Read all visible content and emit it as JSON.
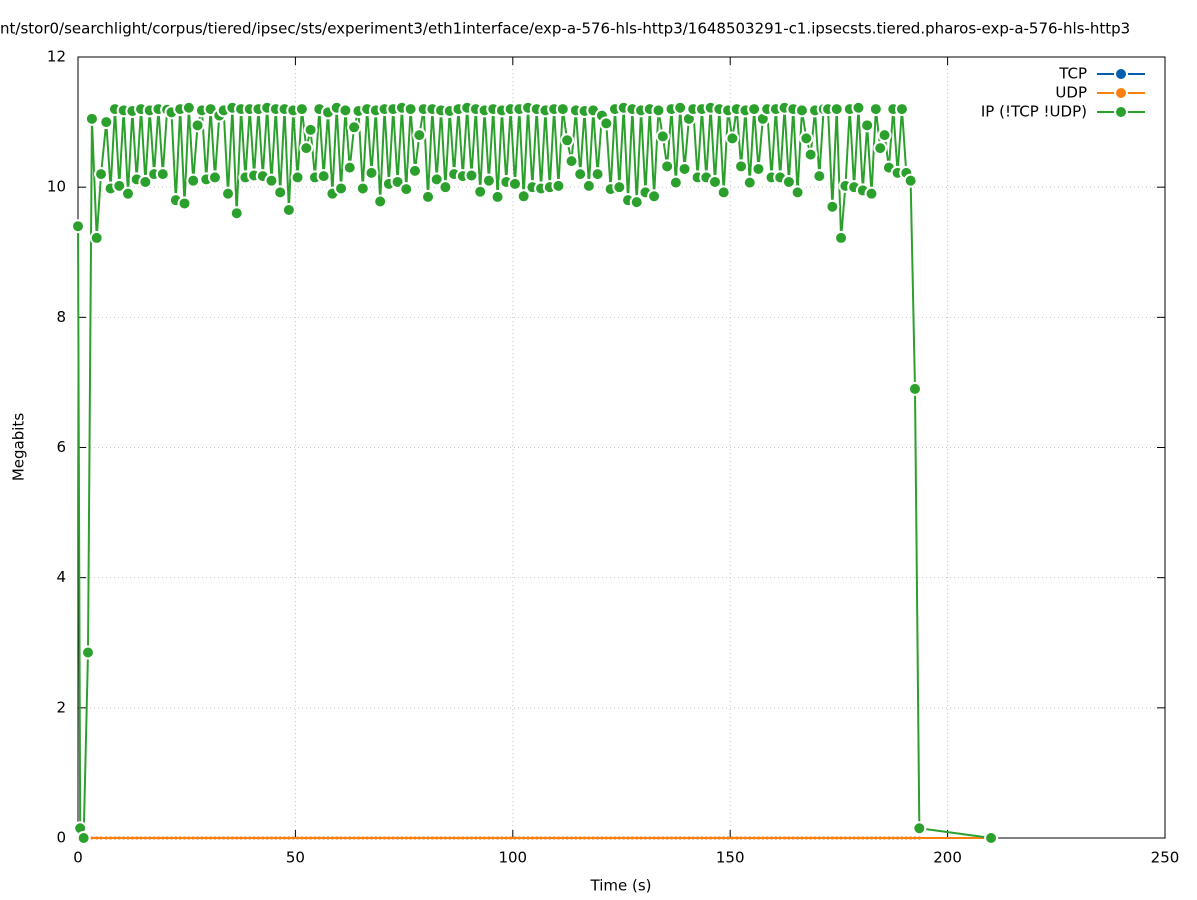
{
  "chart_data": {
    "type": "line",
    "title": "nt/stor0/searchlight/corpus/tiered/ipsec/sts/experiment3/eth1interface/exp-a-576-hls-http3/1648503291-c1.ipsecsts.tiered.pharos-exp-a-576-hls-http3",
    "x_label": "Time (s)",
    "y_label": "Megabits",
    "xlim": [
      0,
      250
    ],
    "xticks": [
      0,
      50,
      100,
      150,
      200,
      250
    ],
    "ylim": [
      0,
      12
    ],
    "yticks": [
      0,
      2,
      4,
      6,
      8,
      10,
      12
    ],
    "grid": true,
    "legend": "top-right",
    "x": [
      0,
      0.5,
      1.3,
      2.3,
      3.2,
      4.3,
      5.3,
      6.5,
      7.5,
      8.5,
      9.5,
      10.5,
      11.5,
      12.5,
      13.5,
      14.5,
      15.5,
      16.5,
      17.5,
      18.5,
      19.5,
      20.5,
      21.5,
      22.5,
      23.5,
      24.5,
      25.5,
      26.5,
      27.5,
      28.5,
      29.5,
      30.5,
      31.5,
      32.5,
      33.5,
      34.5,
      35.5,
      36.5,
      37.5,
      38.5,
      39.5,
      40.5,
      41.5,
      42.5,
      43.5,
      44.5,
      45.5,
      46.5,
      47.5,
      48.5,
      49.5,
      50.5,
      51.5,
      52.5,
      53.5,
      54.5,
      55.5,
      56.5,
      57.5,
      58.5,
      59.5,
      60.5,
      61.5,
      62.5,
      63.5,
      64.5,
      65.5,
      66.5,
      67.5,
      68.5,
      69.5,
      70.5,
      71.5,
      72.5,
      73.5,
      74.5,
      75.5,
      76.5,
      77.5,
      78.5,
      79.5,
      80.5,
      81.5,
      82.5,
      83.5,
      84.5,
      85.5,
      86.5,
      87.5,
      88.5,
      89.5,
      90.5,
      91.5,
      92.5,
      93.5,
      94.5,
      95.5,
      96.5,
      97.5,
      98.5,
      99.5,
      100.5,
      101.5,
      102.5,
      103.5,
      104.5,
      105.5,
      106.5,
      107.5,
      108.5,
      109.5,
      110.5,
      111.5,
      112.5,
      113.5,
      114.5,
      115.5,
      116.5,
      117.5,
      118.5,
      119.5,
      120.5,
      121.5,
      122.5,
      123.5,
      124.5,
      125.5,
      126.5,
      127.5,
      128.5,
      129.5,
      130.5,
      131.5,
      132.5,
      133.5,
      134.5,
      135.5,
      136.5,
      137.5,
      138.5,
      139.5,
      140.5,
      141.5,
      142.5,
      143.5,
      144.5,
      145.5,
      146.5,
      147.5,
      148.5,
      149.5,
      150.5,
      151.5,
      152.5,
      153.5,
      154.5,
      155.5,
      156.5,
      157.5,
      158.5,
      159.5,
      160.5,
      161.5,
      162.5,
      163.5,
      164.5,
      165.5,
      166.5,
      167.5,
      168.5,
      169.5,
      170.5,
      171.5,
      172.5,
      173.5,
      174.5,
      175.5,
      176.5,
      177.5,
      178.5,
      179.5,
      180.5,
      181.5,
      182.5,
      183.5,
      184.5,
      185.5,
      186.5,
      187.5,
      188.5,
      189.5,
      190.5,
      191.5,
      192.5,
      193.5,
      210
    ],
    "series": [
      {
        "name": "TCP",
        "color": "#0060ad",
        "values": [
          0,
          0,
          0,
          0,
          0,
          0,
          0,
          0,
          0,
          0,
          0,
          0,
          0,
          0,
          0,
          0,
          0,
          0,
          0,
          0,
          0,
          0,
          0,
          0,
          0,
          0,
          0,
          0,
          0,
          0,
          0,
          0,
          0,
          0,
          0,
          0,
          0,
          0,
          0,
          0,
          0,
          0,
          0,
          0,
          0,
          0,
          0,
          0,
          0,
          0,
          0,
          0,
          0,
          0,
          0,
          0,
          0,
          0,
          0,
          0,
          0,
          0,
          0,
          0,
          0,
          0,
          0,
          0,
          0,
          0,
          0,
          0,
          0,
          0,
          0,
          0,
          0,
          0,
          0,
          0,
          0,
          0,
          0,
          0,
          0,
          0,
          0,
          0,
          0,
          0,
          0,
          0,
          0,
          0,
          0,
          0,
          0,
          0,
          0,
          0,
          0,
          0,
          0,
          0,
          0,
          0,
          0,
          0,
          0,
          0,
          0,
          0,
          0,
          0,
          0,
          0,
          0,
          0,
          0,
          0,
          0,
          0,
          0,
          0,
          0,
          0,
          0,
          0,
          0,
          0,
          0,
          0,
          0,
          0,
          0,
          0,
          0,
          0,
          0,
          0,
          0,
          0,
          0,
          0,
          0,
          0,
          0,
          0,
          0,
          0,
          0,
          0,
          0,
          0,
          0,
          0,
          0,
          0,
          0,
          0,
          0,
          0,
          0,
          0,
          0,
          0,
          0,
          0,
          0,
          0,
          0,
          0,
          0,
          0,
          0,
          0,
          0,
          0,
          0,
          0,
          0,
          0,
          0,
          0,
          0,
          0,
          0,
          0,
          0,
          0,
          0,
          0,
          0,
          0,
          0,
          0
        ]
      },
      {
        "name": "UDP",
        "color": "#ff7f0e",
        "values": [
          0,
          0,
          0,
          0,
          0,
          0,
          0,
          0,
          0,
          0,
          0,
          0,
          0,
          0,
          0,
          0,
          0,
          0,
          0,
          0,
          0,
          0,
          0,
          0,
          0,
          0,
          0,
          0,
          0,
          0,
          0,
          0,
          0,
          0,
          0,
          0,
          0,
          0,
          0,
          0,
          0,
          0,
          0,
          0,
          0,
          0,
          0,
          0,
          0,
          0,
          0,
          0,
          0,
          0,
          0,
          0,
          0,
          0,
          0,
          0,
          0,
          0,
          0,
          0,
          0,
          0,
          0,
          0,
          0,
          0,
          0,
          0,
          0,
          0,
          0,
          0,
          0,
          0,
          0,
          0,
          0,
          0,
          0,
          0,
          0,
          0,
          0,
          0,
          0,
          0,
          0,
          0,
          0,
          0,
          0,
          0,
          0,
          0,
          0,
          0,
          0,
          0,
          0,
          0,
          0,
          0,
          0,
          0,
          0,
          0,
          0,
          0,
          0,
          0,
          0,
          0,
          0,
          0,
          0,
          0,
          0,
          0,
          0,
          0,
          0,
          0,
          0,
          0,
          0,
          0,
          0,
          0,
          0,
          0,
          0,
          0,
          0,
          0,
          0,
          0,
          0,
          0,
          0,
          0,
          0,
          0,
          0,
          0,
          0,
          0,
          0,
          0,
          0,
          0,
          0,
          0,
          0,
          0,
          0,
          0,
          0,
          0,
          0,
          0,
          0,
          0,
          0,
          0,
          0,
          0,
          0,
          0,
          0,
          0,
          0,
          0,
          0,
          0,
          0,
          0,
          0,
          0,
          0,
          0,
          0,
          0,
          0,
          0,
          0,
          0,
          0,
          0,
          0,
          0,
          0,
          0
        ]
      },
      {
        "name": "IP (!TCP  !UDP)",
        "color": "#2ca02c",
        "values": [
          9.4,
          0.15,
          0,
          2.85,
          11.05,
          9.22,
          10.2,
          11.0,
          9.98,
          11.2,
          10.02,
          11.18,
          9.9,
          11.17,
          10.12,
          11.2,
          10.08,
          11.18,
          10.2,
          11.2,
          10.2,
          11.19,
          11.15,
          9.8,
          11.2,
          9.75,
          11.22,
          10.1,
          10.95,
          11.18,
          10.12,
          11.2,
          10.15,
          11.1,
          11.18,
          9.9,
          11.22,
          9.6,
          11.2,
          10.15,
          11.2,
          10.18,
          11.2,
          10.17,
          11.22,
          10.1,
          11.2,
          9.92,
          11.2,
          9.65,
          11.18,
          10.15,
          11.2,
          10.6,
          10.88,
          10.15,
          11.2,
          10.17,
          11.15,
          9.9,
          11.22,
          9.98,
          11.18,
          10.3,
          10.92,
          11.17,
          9.98,
          11.2,
          10.22,
          11.18,
          9.78,
          11.2,
          10.05,
          11.2,
          10.08,
          11.22,
          9.97,
          11.2,
          10.25,
          10.8,
          11.2,
          9.85,
          11.2,
          10.12,
          11.18,
          10.0,
          11.17,
          10.2,
          11.2,
          10.17,
          11.22,
          10.18,
          11.2,
          9.93,
          11.18,
          10.1,
          11.2,
          9.85,
          11.18,
          10.08,
          11.2,
          10.05,
          11.2,
          9.86,
          11.22,
          10.0,
          11.2,
          9.98,
          11.18,
          10.0,
          11.2,
          10.02,
          11.2,
          10.72,
          10.4,
          11.18,
          10.2,
          11.17,
          10.02,
          11.18,
          10.2,
          11.1,
          10.98,
          9.97,
          11.2,
          10.0,
          11.22,
          9.8,
          11.2,
          9.77,
          11.18,
          9.92,
          11.2,
          9.86,
          11.18,
          10.78,
          10.32,
          11.2,
          10.07,
          11.22,
          10.28,
          11.05,
          11.2,
          10.15,
          11.2,
          10.15,
          11.22,
          10.08,
          11.2,
          9.92,
          11.18,
          10.75,
          11.2,
          10.32,
          11.18,
          10.07,
          11.2,
          10.28,
          11.05,
          11.2,
          10.15,
          11.2,
          10.15,
          11.22,
          10.08,
          11.2,
          9.92,
          11.18,
          10.75,
          10.5,
          11.18,
          10.17,
          11.2,
          11.2,
          9.7,
          11.2,
          9.22,
          10.02,
          11.2,
          10.0,
          11.22,
          9.95,
          10.95,
          9.9,
          11.2,
          10.6,
          10.8,
          10.3,
          11.2,
          10.22,
          11.2,
          10.22,
          10.1,
          6.9,
          0.15,
          0
        ]
      }
    ]
  }
}
